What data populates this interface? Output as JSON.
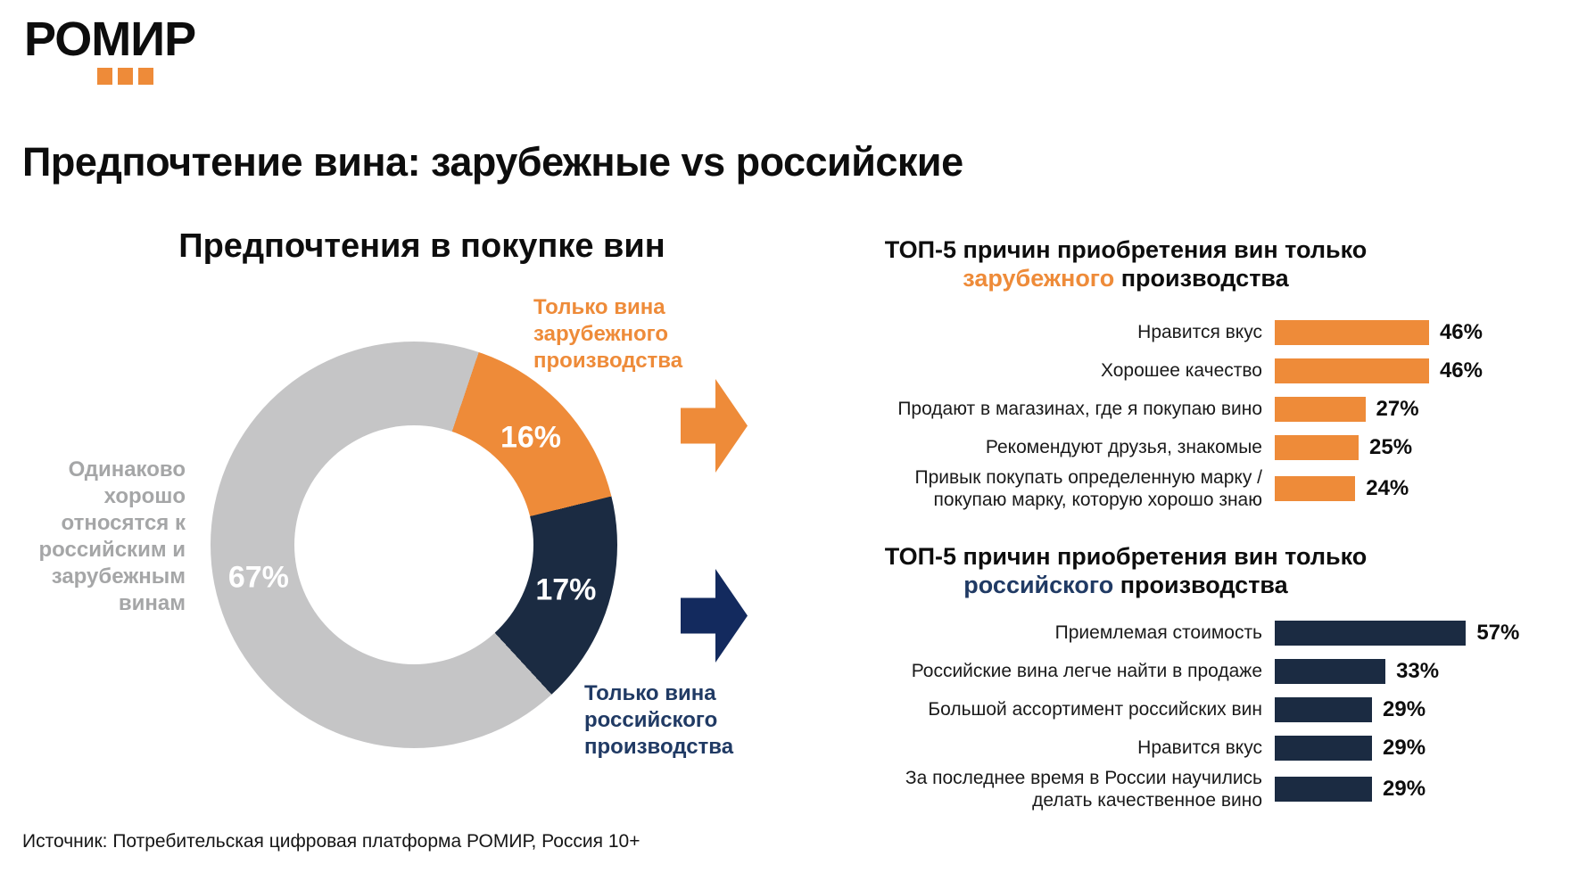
{
  "logo": {
    "text": "РОМИР",
    "dot_color": "#EE8B39"
  },
  "page_title": "Предпочтение вина: зарубежные vs российские",
  "source": "Источник: Потребительская цифровая платформа РОМИР, Россия 10+",
  "colors": {
    "orange": "#EE8B39",
    "navy": "#1B2B42",
    "navy_arrow": "#132A5E",
    "navy_text": "#203A64",
    "gray": "#C5C5C6",
    "gray_text": "#A5A6A7"
  },
  "chart_data": [
    {
      "type": "pie",
      "variant": "donut",
      "title": "Предпочтения в покупке вин",
      "start_angle_deg": 18.6,
      "segments": [
        {
          "label": "Только вина зарубежного производства",
          "value": 16,
          "color": "#EE8B39"
        },
        {
          "label": "Только вина российского производства",
          "value": 17,
          "color": "#1B2B42"
        },
        {
          "label": "Одинаково хорошо относятся к российским и зарубежным винам",
          "value": 67,
          "color": "#C5C5C6"
        }
      ]
    },
    {
      "type": "bar",
      "title_line1": "ТОП-5 причин приобретения вин только",
      "title_highlight": "зарубежного",
      "title_suffix": " производства",
      "color": "#EE8B39",
      "categories": [
        "Нравится вкус",
        "Хорошее качество",
        "Продают в магазинах, где я покупаю вино",
        "Рекомендуют друзья, знакомые",
        "Привык покупать определенную марку / покупаю марку, которую хорошо знаю"
      ],
      "values": [
        46,
        46,
        27,
        25,
        24
      ]
    },
    {
      "type": "bar",
      "title_line1": "ТОП-5 причин приобретения вин только",
      "title_highlight": "российского",
      "title_suffix": " производства",
      "color": "#1B2B42",
      "categories": [
        "Приемлемая стоимость",
        "Российские вина легче найти в продаже",
        "Большой ассортимент российских вин",
        "Нравится вкус",
        "За последнее время в России научились делать качественное вино"
      ],
      "values": [
        57,
        33,
        29,
        29,
        29
      ]
    }
  ]
}
